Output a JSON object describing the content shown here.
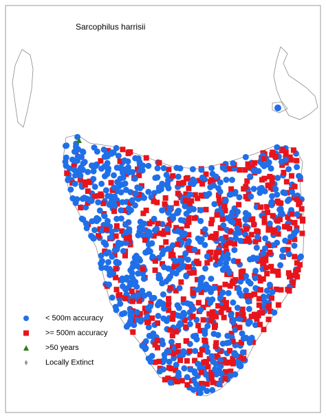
{
  "title": "Sarcophilus harrisii",
  "legend": [
    {
      "label": "< 500m accuracy",
      "marker": "circle",
      "color": "#1f6fe8"
    },
    {
      "label": ">= 500m accuracy",
      "marker": "square",
      "color": "#e8141c"
    },
    {
      "label": ">50 years",
      "marker": "triangle",
      "color": "#2e7d1e"
    },
    {
      "label": "Locally Extinct",
      "marker": "diamond",
      "color": "#9a9a9a"
    }
  ]
}
